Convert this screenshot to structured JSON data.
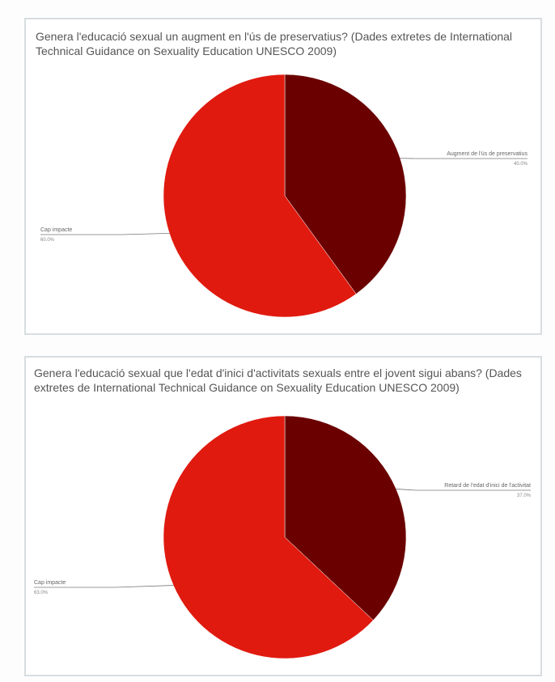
{
  "charts": [
    {
      "title": "Genera l'educació sexual un augment en l'ús de preservatius? (Dades extretes de International Technical Guidance on Sexuality Education UNESCO 2009)"
    },
    {
      "title": "Genera l'educació sexual que l'edat d'inici d'activitats sexuals entre el jovent sigui abans? (Dades extretes de International Technical Guidance on Sexuality Education UNESCO 2009)"
    }
  ],
  "colors": {
    "dark": "#6b0000",
    "red": "#e01a0f"
  },
  "chart_data": [
    {
      "type": "pie",
      "title": "Genera l'educació sexual un augment en l'ús de preservatius? (Dades extretes de International Technical Guidance on Sexuality Education UNESCO 2009)",
      "slices": [
        {
          "label": "Augment de l'ús de preservatius",
          "value": 40,
          "color": "#6b0000"
        },
        {
          "label": "Cap impacte",
          "value": 60,
          "color": "#e01a0f"
        }
      ]
    },
    {
      "type": "pie",
      "title": "Genera l'educació sexual que l'edat d'inici d'activitats sexuals entre el jovent sigui abans? (Dades extretes de International Technical Guidance on Sexuality Education UNESCO 2009)",
      "slices": [
        {
          "label": "Retard de l'edat d'inici de l'activitat",
          "value": 37,
          "color": "#6b0000"
        },
        {
          "label": "Cap impacte",
          "value": 63,
          "color": "#e01a0f"
        }
      ]
    }
  ]
}
